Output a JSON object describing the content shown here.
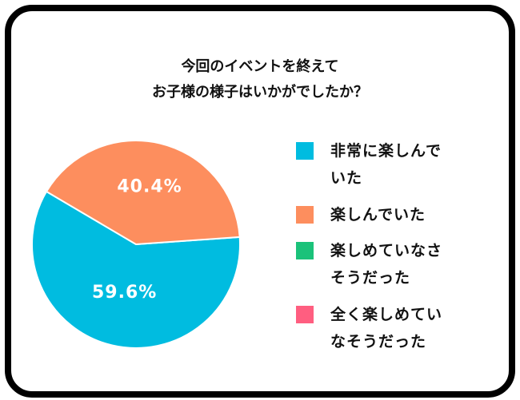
{
  "chart_data": {
    "type": "pie",
    "title_lines": [
      "今回のイベントを終えて",
      "お子様の様子はいかがでしたか？"
    ],
    "slices": [
      {
        "label_lines": [
          "非常に楽しんで",
          "いた"
        ],
        "value": 59.6,
        "value_label": "59.6%",
        "color": "#00BCE0"
      },
      {
        "label_lines": [
          "楽しんでいた"
        ],
        "value": 40.4,
        "value_label": "40.4%",
        "color": "#FD8E5E"
      },
      {
        "label_lines": [
          "楽しめていなさ",
          "そうだった"
        ],
        "value": 0,
        "value_label": "",
        "color": "#1BC27A"
      },
      {
        "label_lines": [
          "全く楽しめてい",
          "なそうだった"
        ],
        "value": 0,
        "value_label": "",
        "color": "#FF5E80"
      }
    ],
    "legend": "right"
  }
}
